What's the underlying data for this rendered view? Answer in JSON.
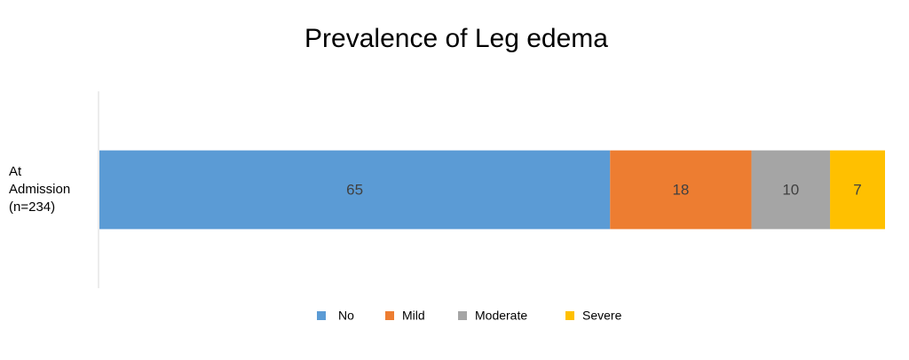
{
  "chart_data": {
    "type": "stacked-bar-horizontal",
    "title": "Prevalence of Leg edema",
    "categories": [
      "At Admission (n=234)"
    ],
    "series": [
      {
        "name": "No",
        "color": "#5b9bd5",
        "values": [
          65
        ]
      },
      {
        "name": "Mild",
        "color": "#ed7d31",
        "values": [
          18
        ]
      },
      {
        "name": "Moderate",
        "color": "#a5a5a5",
        "values": [
          10
        ]
      },
      {
        "name": "Severe",
        "color": "#ffc000",
        "values": [
          7
        ]
      }
    ],
    "xlim": [
      0,
      100
    ],
    "legend": "bottom"
  }
}
